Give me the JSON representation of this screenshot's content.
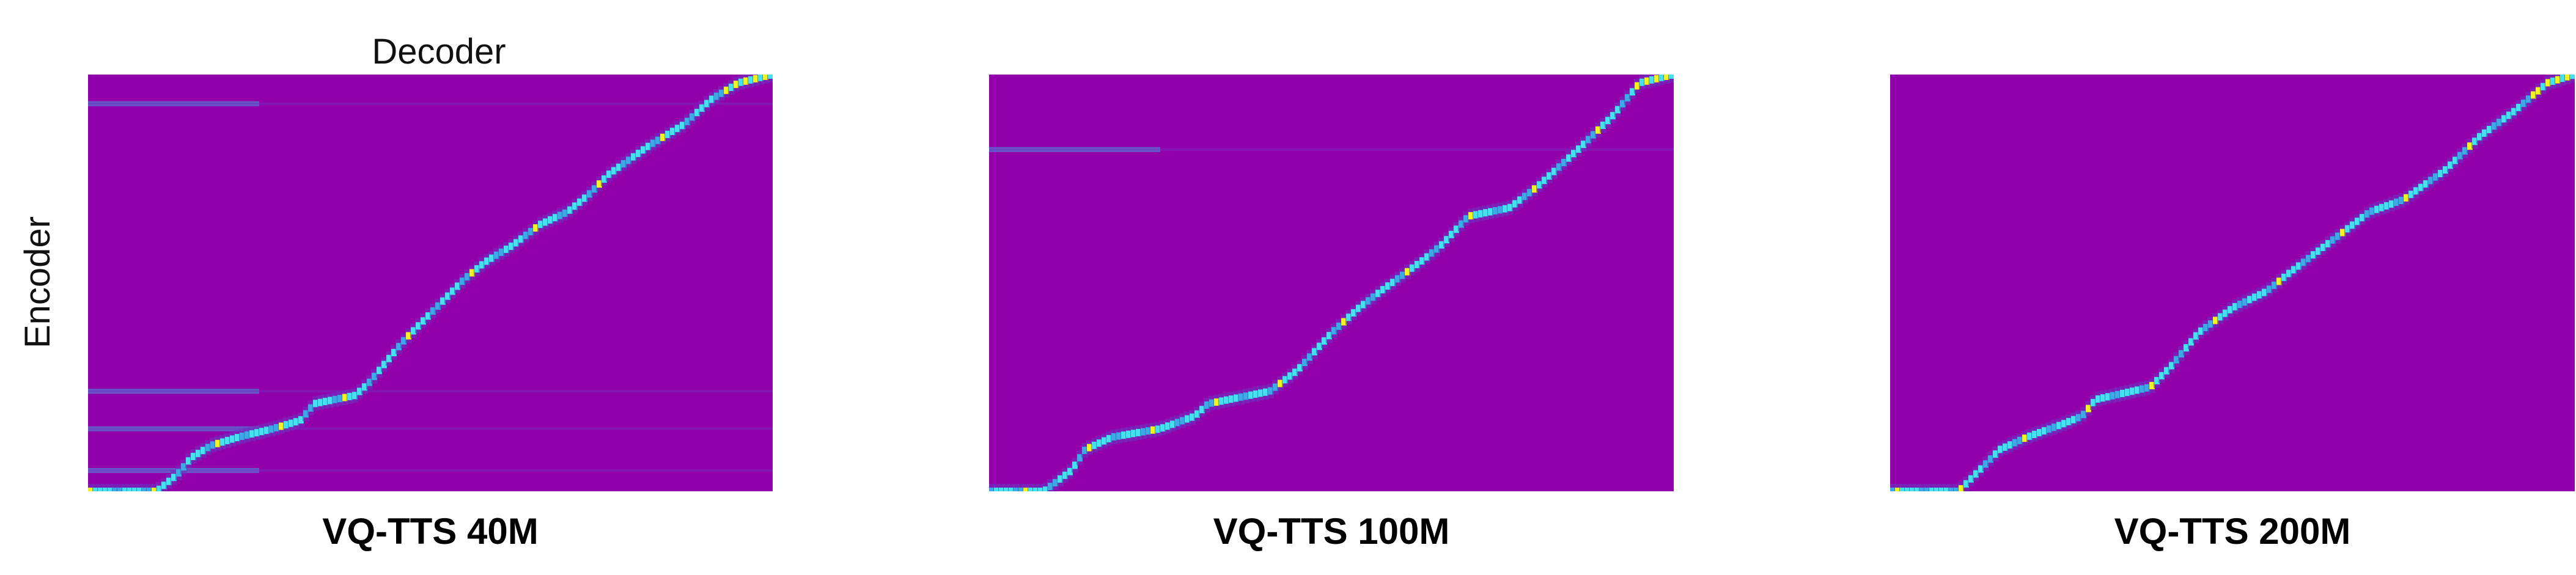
{
  "figure": {
    "xlabel": "Decoder",
    "ylabel": "Encoder"
  },
  "chart_data": [
    {
      "type": "heatmap",
      "title": "VQ-TTS 40M",
      "xlabel": "Decoder",
      "ylabel": "Encoder",
      "grid": false,
      "colormap": [
        "#9200AA",
        "#7030C0",
        "#40A8E6",
        "#48E0F0",
        "#F2F228"
      ],
      "background_color": "#9200AA",
      "alignment_path": [
        [
          0.0,
          0.0
        ],
        [
          0.1,
          0.0
        ],
        [
          0.13,
          0.04
        ],
        [
          0.15,
          0.08
        ],
        [
          0.18,
          0.11
        ],
        [
          0.22,
          0.13
        ],
        [
          0.27,
          0.15
        ],
        [
          0.31,
          0.17
        ],
        [
          0.33,
          0.21
        ],
        [
          0.39,
          0.23
        ],
        [
          0.41,
          0.26
        ],
        [
          0.46,
          0.36
        ],
        [
          0.52,
          0.46
        ],
        [
          0.55,
          0.51
        ],
        [
          0.58,
          0.55
        ],
        [
          0.62,
          0.59
        ],
        [
          0.66,
          0.64
        ],
        [
          0.7,
          0.67
        ],
        [
          0.73,
          0.71
        ],
        [
          0.76,
          0.76
        ],
        [
          0.82,
          0.83
        ],
        [
          0.87,
          0.88
        ],
        [
          0.91,
          0.94
        ],
        [
          0.95,
          0.98
        ],
        [
          1.0,
          1.0
        ]
      ],
      "horizontal_streaks": [
        0.05,
        0.15,
        0.24,
        0.93
      ]
    },
    {
      "type": "heatmap",
      "title": "VQ-TTS 100M",
      "xlabel": "Decoder",
      "ylabel": "Encoder",
      "grid": false,
      "colormap": [
        "#9200AA",
        "#7030C0",
        "#40A8E6",
        "#48E0F0",
        "#F2F228"
      ],
      "background_color": "#9200AA",
      "alignment_path": [
        [
          0.0,
          0.0
        ],
        [
          0.08,
          0.0
        ],
        [
          0.12,
          0.05
        ],
        [
          0.14,
          0.1
        ],
        [
          0.18,
          0.13
        ],
        [
          0.25,
          0.15
        ],
        [
          0.3,
          0.18
        ],
        [
          0.32,
          0.21
        ],
        [
          0.41,
          0.24
        ],
        [
          0.45,
          0.29
        ],
        [
          0.5,
          0.38
        ],
        [
          0.54,
          0.44
        ],
        [
          0.58,
          0.49
        ],
        [
          0.63,
          0.55
        ],
        [
          0.66,
          0.59
        ],
        [
          0.7,
          0.66
        ],
        [
          0.76,
          0.68
        ],
        [
          0.8,
          0.73
        ],
        [
          0.86,
          0.82
        ],
        [
          0.91,
          0.9
        ],
        [
          0.95,
          0.98
        ],
        [
          1.0,
          1.0
        ]
      ],
      "horizontal_streaks": [
        0.82
      ]
    },
    {
      "type": "heatmap",
      "title": "VQ-TTS 200M",
      "xlabel": "Decoder",
      "ylabel": "Encoder",
      "grid": false,
      "colormap": [
        "#9200AA",
        "#7030C0",
        "#40A8E6",
        "#48E0F0",
        "#F2F228"
      ],
      "background_color": "#9200AA",
      "alignment_path": [
        [
          0.0,
          0.0
        ],
        [
          0.1,
          0.0
        ],
        [
          0.13,
          0.05
        ],
        [
          0.16,
          0.1
        ],
        [
          0.2,
          0.13
        ],
        [
          0.25,
          0.16
        ],
        [
          0.28,
          0.18
        ],
        [
          0.3,
          0.22
        ],
        [
          0.38,
          0.25
        ],
        [
          0.41,
          0.3
        ],
        [
          0.45,
          0.38
        ],
        [
          0.5,
          0.44
        ],
        [
          0.55,
          0.48
        ],
        [
          0.58,
          0.52
        ],
        [
          0.62,
          0.57
        ],
        [
          0.66,
          0.62
        ],
        [
          0.7,
          0.67
        ],
        [
          0.75,
          0.7
        ],
        [
          0.81,
          0.77
        ],
        [
          0.86,
          0.85
        ],
        [
          0.91,
          0.91
        ],
        [
          0.96,
          0.98
        ],
        [
          1.0,
          1.0
        ]
      ],
      "horizontal_streaks": []
    }
  ]
}
